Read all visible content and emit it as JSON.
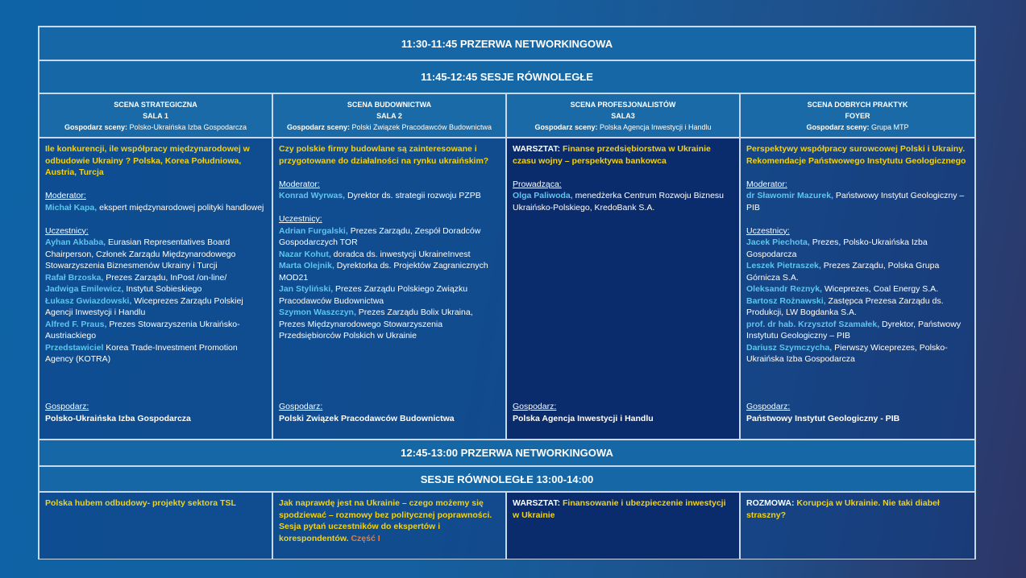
{
  "break1": "11:30-11:45 PRZERWA NETWORKINGOWA",
  "sessions1": "11:45-12:45 SESJE RÓWNOLEGŁE",
  "columns": [
    {
      "scene": "SCENA STRATEGICZNA",
      "room": "SALA 1",
      "host_label": "Gospodarz sceny:",
      "host": "Polsko-Ukraińska Izba Gospodarcza",
      "title_prefix": "",
      "title": "Ile konkurencji, ile współpracy międzynarodowej w odbudowie Ukrainy ? Polska, Korea Południowa, Austria, Turcja",
      "moderator_label": "Moderator:",
      "moderator": {
        "name": "Michał Kapa,",
        "desc": " ekspert międzynarodowej polityki handlowej"
      },
      "participants_label": "Uczestnicy:",
      "participants": [
        {
          "name": "Ayhan Akbaba,",
          "desc": " Eurasian Representatives Board Chairperson, Członek Zarządu Międzynarodowego Stowarzyszenia Biznesmenów Ukrainy i Turcji"
        },
        {
          "name": "Rafał Brzoska,",
          "desc": " Prezes Zarządu, InPost  /on-line/"
        },
        {
          "name": "Jadwiga Emilewicz,",
          "desc": " Instytut Sobieskiego"
        },
        {
          "name": "Łukasz Gwiazdowski,",
          "desc": " Wiceprezes Zarządu Polskiej Agencji Inwestycji i Handlu"
        },
        {
          "name": "Alfred F. Praus,",
          "desc": " Prezes Stowarzyszenia Ukraińsko-Austriackiego"
        },
        {
          "name": "Przedstawiciel",
          "desc": " Korea Trade-Investment Promotion Agency (KOTRA)"
        }
      ],
      "footer_label": "Gospodarz:",
      "footer": "Polsko-Ukraińska Izba Gospodarcza"
    },
    {
      "scene": "SCENA BUDOWNICTWA",
      "room": "SALA 2",
      "host_label": "Gospodarz sceny:",
      "host": "Polski Związek Pracodawców Budownictwa",
      "title_prefix": "",
      "title": "Czy polskie firmy budowlane są zainteresowane i przygotowane do działalności na rynku ukraińskim?",
      "moderator_label": "Moderator:",
      "moderator": {
        "name": "Konrad Wyrwas,",
        "desc": " Dyrektor  ds. strategii rozwoju PZPB"
      },
      "participants_label": "Uczestnicy:",
      "participants": [
        {
          "name": "Adrian Furgalski,",
          "desc": " Prezes Zarządu, Zespół Doradców Gospodarczych TOR"
        },
        {
          "name": "Nazar Kohut,",
          "desc": " doradca ds. inwestycji UkraineInvest"
        },
        {
          "name": "Marta Olejnik,",
          "desc": " Dyrektorka ds. Projektów Zagranicznych MOD21"
        },
        {
          "name": "Jan Styliński,",
          "desc": " Prezes  Zarządu Polskiego Związku Pracodawców Budownictwa"
        },
        {
          "name": "Szymon Waszczyn,",
          "desc": " Prezes  Zarządu Bolix Ukraina, Prezes Międzynarodowego Stowarzyszenia Przedsiębiorców Polskich w Ukrainie"
        }
      ],
      "footer_label": "Gospodarz:",
      "footer": "Polski Związek Pracodawców Budownictwa"
    },
    {
      "scene": "SCENA PROFESJONALISTÓW",
      "room": "SALA3",
      "host_label": "Gospodarz sceny:",
      "host": "Polska Agencja Inwestycji i Handlu",
      "title_prefix": "WARSZTAT: ",
      "title": "Finanse przedsiębiorstwa w Ukrainie czasu wojny – perspektywa bankowca",
      "moderator_label": "Prowadząca:",
      "moderator": {
        "name": "Olga Paliwoda,",
        "desc": " menedżerka Centrum Rozwoju Biznesu Ukraińsko-Polskiego, KredoBank S.A."
      },
      "participants_label": "",
      "participants": [],
      "footer_label": "Gospodarz:",
      "footer": "Polska Agencja Inwestycji i Handlu"
    },
    {
      "scene": "SCENA DOBRYCH PRAKTYK",
      "room": "FOYER",
      "host_label": "Gospodarz sceny:",
      "host": "Grupa MTP",
      "title_prefix": "",
      "title": "Perspektywy  współpracy surowcowej Polski i Ukrainy. Rekomendacje Państwowego Instytutu Geologicznego",
      "moderator_label": "Moderator:",
      "moderator": {
        "name": "dr Sławomir Mazurek,",
        "desc": " Państwowy Instytut Geologiczny – PIB"
      },
      "participants_label": "Uczestnicy:",
      "participants": [
        {
          "name": "Jacek Piechota,",
          "desc": " Prezes, Polsko-Ukraińska Izba Gospodarcza"
        },
        {
          "name": "Leszek Pietraszek,",
          "desc": " Prezes Zarządu, Polska Grupa Górnicza S.A."
        },
        {
          "name": "Oleksandr Reznyk,",
          "desc": " Wiceprezes, Coal Energy S.A."
        },
        {
          "name": "Bartosz Rożnawski,",
          "desc": " Zastępca Prezesa Zarządu ds. Produkcji, LW Bogdanka S.A."
        },
        {
          "name": "prof. dr hab. Krzysztof Szamałek,",
          "desc": " Dyrektor, Państwowy Instytutu Geologiczny – PIB"
        },
        {
          "name": "Dariusz Szymczycha,",
          "desc": " Pierwszy Wiceprezes, Polsko-Ukraińska Izba Gospodarcza"
        }
      ],
      "footer_label": "Gospodarz:",
      "footer": "Państwowy Instytut Geologiczny - PIB"
    }
  ],
  "break2": "12:45-13:00 PRZERWA NETWORKINGOWA",
  "sessions2": "SESJE RÓWNOLEGŁE 13:00-14:00",
  "bottom": [
    {
      "prefix": "",
      "title": "Polska hubem odbudowy- projekty sektora TSL",
      "suffix": ""
    },
    {
      "prefix": "",
      "title": "Jak naprawdę jest na Ukrainie – czego  możemy się spodziewać – rozmowy bez politycznej poprawności. Sesja pytań uczestników do ekspertów i korespondentów.",
      "suffix": " Część I"
    },
    {
      "prefix": "WARSZTAT: ",
      "title": "Finansowanie i ubezpieczenie inwestycji w Ukrainie",
      "suffix": ""
    },
    {
      "prefix": "ROZMOWA: ",
      "title": "Korupcja w Ukrainie. Nie taki diabeł straszny?",
      "suffix": ""
    }
  ],
  "colors": {
    "title": "#f3d214",
    "name": "#5cc6f0",
    "highlight": "#f07a2a",
    "dark_cell": "#0b2c6c"
  }
}
